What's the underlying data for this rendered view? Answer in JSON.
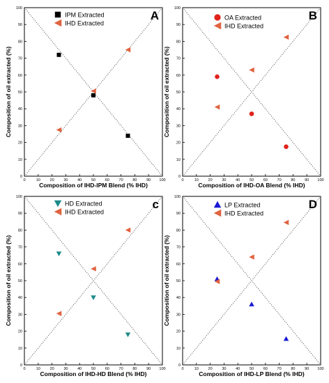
{
  "chart_data": [
    {
      "type": "scatter",
      "panel_label": "A",
      "xlabel": "Composition of IHD-IPM Blend (% IHD)",
      "ylabel": "Composition of oil extracted (%)",
      "xlim": [
        0,
        100
      ],
      "ylim": [
        0,
        100
      ],
      "xticks": [
        "0",
        "10",
        "20",
        "30",
        "40",
        "50",
        "60",
        "70",
        "80",
        "90",
        "100"
      ],
      "yticks": [
        "0",
        "10",
        "20",
        "30",
        "40",
        "50",
        "60",
        "70",
        "80",
        "90",
        "100"
      ],
      "legend_position": "top-left",
      "reference_lines": "dotted diagonals y = x and y = 100 - x",
      "series": [
        {
          "name": "IPM Extracted",
          "marker": "square",
          "color": "#000000",
          "x": [
            25,
            50,
            75
          ],
          "y": [
            72,
            48,
            24
          ]
        },
        {
          "name": "IHD Extracted",
          "marker": "triangle-left",
          "color": "#e0633f",
          "x": [
            25,
            50,
            75
          ],
          "y": [
            27.5,
            50.5,
            75
          ]
        }
      ]
    },
    {
      "type": "scatter",
      "panel_label": "B",
      "xlabel": "Composition of IHD-OA Blend (% IHD)",
      "ylabel": "Composition of oil extracted (%)",
      "xlim": [
        0,
        100
      ],
      "ylim": [
        0,
        100
      ],
      "xticks": [
        "0",
        "10",
        "20",
        "30",
        "40",
        "50",
        "60",
        "70",
        "80",
        "90",
        "100"
      ],
      "yticks": [
        "0",
        "10",
        "20",
        "30",
        "40",
        "50",
        "60",
        "70",
        "80",
        "90",
        "100"
      ],
      "legend_position": "top-left",
      "reference_lines": "dotted diagonals y = x and y = 100 - x",
      "series": [
        {
          "name": "OA Extracted",
          "marker": "circle",
          "color": "#e0221b",
          "x": [
            25,
            50,
            75
          ],
          "y": [
            59,
            37,
            17.5
          ]
        },
        {
          "name": "IHD Extracted",
          "marker": "triangle-left",
          "color": "#e0633f",
          "x": [
            25,
            50,
            75
          ],
          "y": [
            41,
            63,
            82.5
          ]
        }
      ]
    },
    {
      "type": "scatter",
      "panel_label": "c",
      "xlabel": "Composition of IHD-HD Blend (% IHD)",
      "ylabel": "Composition of oil extracted (%)",
      "xlim": [
        0,
        100
      ],
      "ylim": [
        0,
        100
      ],
      "xticks": [
        "0",
        "10",
        "20",
        "30",
        "40",
        "50",
        "60",
        "70",
        "80",
        "90",
        "100"
      ],
      "yticks": [
        "0",
        "10",
        "20",
        "30",
        "40",
        "50",
        "60",
        "70",
        "80",
        "90",
        "100"
      ],
      "legend_position": "top-left",
      "reference_lines": "dotted diagonals y = x and y = 100 - x",
      "series": [
        {
          "name": "HD Extracted",
          "marker": "triangle-down",
          "color": "#1c8a8a",
          "x": [
            25,
            50,
            75
          ],
          "y": [
            66,
            40,
            18
          ]
        },
        {
          "name": "IHD Extracted",
          "marker": "triangle-left",
          "color": "#e0633f",
          "x": [
            25,
            50,
            75
          ],
          "y": [
            30.5,
            57,
            80
          ]
        }
      ]
    },
    {
      "type": "scatter",
      "panel_label": "D",
      "xlabel": "Composition of IHD-LP Blend (% IHD)",
      "ylabel": "Composition of oil extracted (%)",
      "xlim": [
        0,
        100
      ],
      "ylim": [
        0,
        100
      ],
      "xticks": [
        "0",
        "10",
        "20",
        "30",
        "40",
        "50",
        "60",
        "70",
        "80",
        "90",
        "100"
      ],
      "yticks": [
        "0",
        "10",
        "20",
        "30",
        "40",
        "50",
        "60",
        "70",
        "80",
        "90",
        "100"
      ],
      "legend_position": "top-left",
      "reference_lines": "dotted diagonals y = x and y = 100 - x",
      "series": [
        {
          "name": "LP Extracted",
          "marker": "triangle-up",
          "color": "#1a1ad6",
          "x": [
            25,
            50,
            75
          ],
          "y": [
            51,
            36,
            15.5
          ]
        },
        {
          "name": "IHD Extracted",
          "marker": "triangle-left",
          "color": "#e0633f",
          "x": [
            25,
            50,
            75
          ],
          "y": [
            49.5,
            64,
            84.5
          ]
        }
      ]
    }
  ]
}
